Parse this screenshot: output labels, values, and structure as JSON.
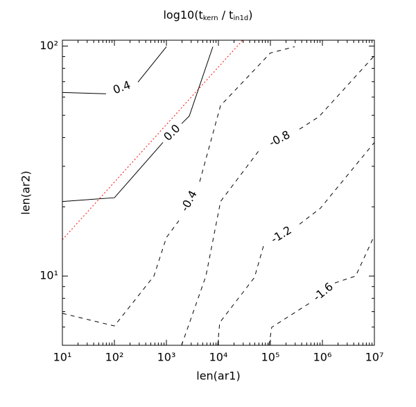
{
  "chart_data": {
    "type": "contour",
    "title": {
      "parts": [
        "log10(t",
        "kern",
        " / t",
        "in1d",
        ")"
      ]
    },
    "x_label": "len(ar1)",
    "y_label": "len(ar2)",
    "log_x": true,
    "log_y": true,
    "xlim": [
      10,
      10000000
    ],
    "ylim": [
      5,
      106
    ],
    "xticks": [
      {
        "value": 10,
        "label": "10¹"
      },
      {
        "value": 100,
        "label": "10²"
      },
      {
        "value": 1000,
        "label": "10³"
      },
      {
        "value": 10000,
        "label": "10⁴"
      },
      {
        "value": 100000,
        "label": "10⁵"
      },
      {
        "value": 1000000,
        "label": "10⁶"
      },
      {
        "value": 10000000,
        "label": "10⁷"
      }
    ],
    "yticks": [
      {
        "value": 10,
        "label": "10¹"
      },
      {
        "value": 100,
        "label": "10²"
      }
    ],
    "xminorticks": [
      20,
      30,
      40,
      50,
      60,
      70,
      80,
      90,
      200,
      300,
      400,
      500,
      600,
      700,
      800,
      900,
      2000,
      3000,
      4000,
      5000,
      6000,
      7000,
      8000,
      9000,
      20000,
      30000,
      40000,
      50000,
      60000,
      70000,
      80000,
      90000,
      200000,
      300000,
      400000,
      500000,
      600000,
      700000,
      800000,
      900000,
      2000000,
      3000000,
      4000000,
      5000000,
      6000000,
      7000000,
      8000000,
      9000000
    ],
    "yminorticks": [
      6,
      7,
      8,
      9,
      20,
      30,
      40,
      50,
      60,
      70,
      80,
      90
    ],
    "levels": [
      0.4,
      0,
      -0.4,
      -0.8,
      -1.2,
      -1.6
    ],
    "level_labels": [
      "0.4",
      "0.0",
      "-0.4",
      "-0.8",
      "-1.2",
      "-1.6"
    ],
    "line_color": "#000000",
    "series": [
      {
        "x": [
          10,
          69,
          null,
          284,
          1000
        ],
        "y": [
          62.8,
          62,
          null,
          69.7,
          99.3
        ]
      },
      {
        "x": [
          10,
          100,
          858,
          null,
          1965,
          2754,
          7816
        ],
        "y": [
          21.1,
          21.9,
          38.1,
          null,
          46.0,
          49.6,
          99.3
        ]
      },
      {
        "x": [
          10,
          100,
          575,
          1000,
          1740,
          null,
          4370,
          11000,
          100000,
          293000
        ],
        "y": [
          6.88,
          6.07,
          10,
          14.7,
          17.4,
          null,
          25.7,
          55.1,
          93.3,
          99.3
        ]
      },
      {
        "x": [
          1960,
          5750,
          11000,
          63100,
          null,
          363000,
          857000,
          10000000
        ],
        "y": [
          5.0,
          10,
          21.1,
          35.6,
          null,
          43.5,
          49.3,
          90.8
        ]
      },
      {
        "x": [
          9700,
          10600,
          49300,
          73600,
          null,
          363000,
          912000,
          10000000
        ],
        "y": [
          5.0,
          6.28,
          9.86,
          13.5,
          null,
          16.8,
          19.7,
          38.1
        ]
      },
      {
        "x": [
          94000,
          106000,
          631000,
          null,
          1740000,
          4370000,
          10000000
        ],
        "y": [
          5.0,
          5.99,
          7.74,
          null,
          9.33,
          10,
          15.0
        ]
      }
    ],
    "reference_line": {
      "x": [
        10,
        29300
      ],
      "y": [
        14.4,
        106
      ],
      "color": "#ff0000",
      "linestyle": "dotted"
    }
  }
}
